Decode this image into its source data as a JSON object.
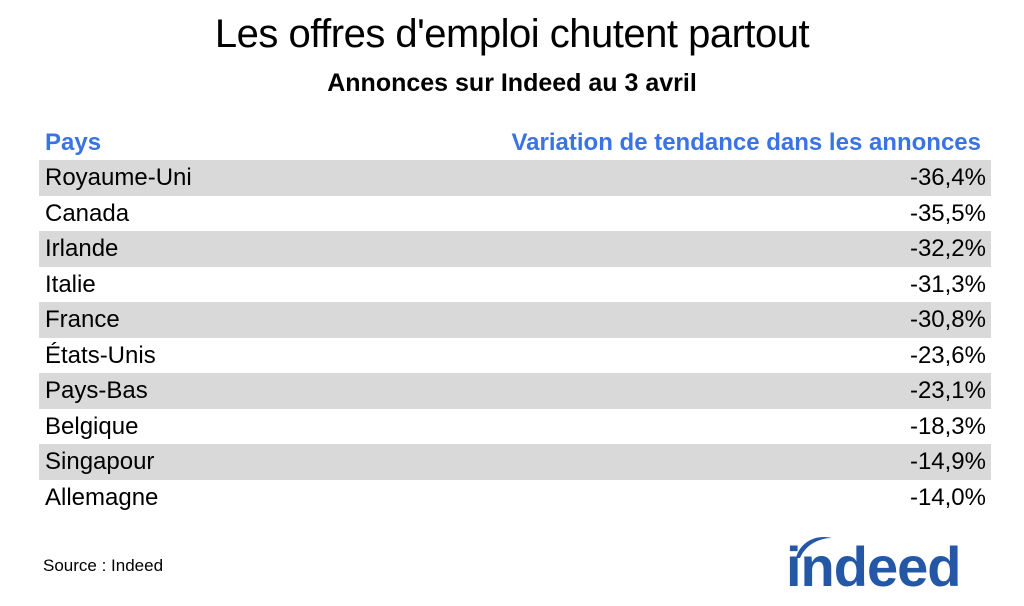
{
  "title": "Les offres d'emploi chutent partout",
  "subtitle": "Annonces sur Indeed au 3 avril",
  "table": {
    "header_country": "Pays",
    "header_value": "Variation de tendance dans les annonces"
  },
  "chart_data": {
    "type": "table",
    "title": "Les offres d'emploi chutent partout",
    "subtitle": "Annonces sur Indeed au 3 avril",
    "columns": [
      "Pays",
      "Variation de tendance dans les annonces"
    ],
    "rows": [
      {
        "country": "Royaume-Uni",
        "value": -36.4,
        "label": "-36,4%"
      },
      {
        "country": "Canada",
        "value": -35.5,
        "label": "-35,5%"
      },
      {
        "country": "Irlande",
        "value": -32.2,
        "label": "-32,2%"
      },
      {
        "country": "Italie",
        "value": -31.3,
        "label": "-31,3%"
      },
      {
        "country": "France",
        "value": -30.8,
        "label": "-30,8%"
      },
      {
        "country": "États-Unis",
        "value": -23.6,
        "label": "-23,6%"
      },
      {
        "country": "Pays-Bas",
        "value": -23.1,
        "label": "-23,1%"
      },
      {
        "country": "Belgique",
        "value": -18.3,
        "label": "-18,3%"
      },
      {
        "country": "Singapour",
        "value": -14.9,
        "label": "-14,9%"
      },
      {
        "country": "Allemagne",
        "value": -14.0,
        "label": "-14,0%"
      }
    ]
  },
  "source": "Source : Indeed",
  "logo": {
    "text": "indeed",
    "color": "#2557a7",
    "icon": "indeed-logo"
  },
  "colors": {
    "header": "#3a74e3",
    "row_shade": "#d9d9d9"
  }
}
